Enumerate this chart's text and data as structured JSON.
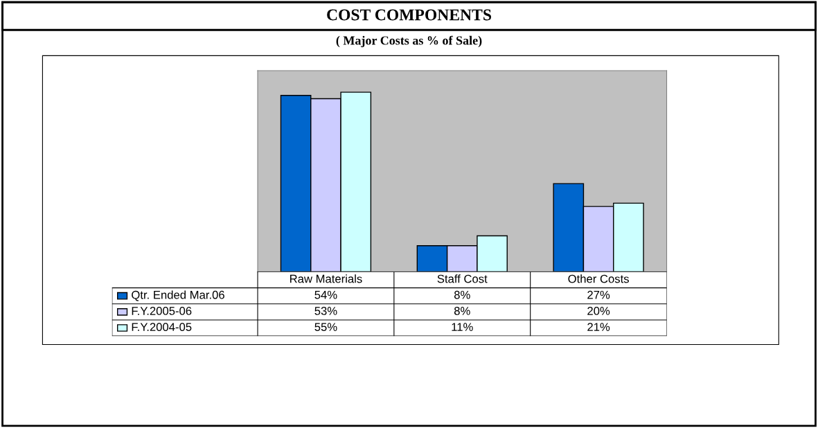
{
  "chart_data": {
    "type": "bar",
    "title": "COST COMPONENTS",
    "subtitle": "( Major Costs as % of Sale)",
    "tick_labels": false,
    "legend": "bottom",
    "categories": [
      "Raw Materials",
      "Staff Cost",
      "Other Costs"
    ],
    "series": [
      {
        "name": "Qtr. Ended Mar.06",
        "color": "#0066cc",
        "values": [
          54,
          8,
          27
        ],
        "value_labels": [
          "54%",
          "8%",
          "27%"
        ]
      },
      {
        "name": "F.Y.2005-06",
        "color": "#ccccff",
        "values": [
          53,
          8,
          20
        ],
        "value_labels": [
          "53%",
          "8%",
          "20%"
        ]
      },
      {
        "name": "F.Y.2004-05",
        "color": "#ccffff",
        "values": [
          55,
          11,
          21
        ],
        "value_labels": [
          "55%",
          "11%",
          "21%"
        ]
      }
    ]
  }
}
